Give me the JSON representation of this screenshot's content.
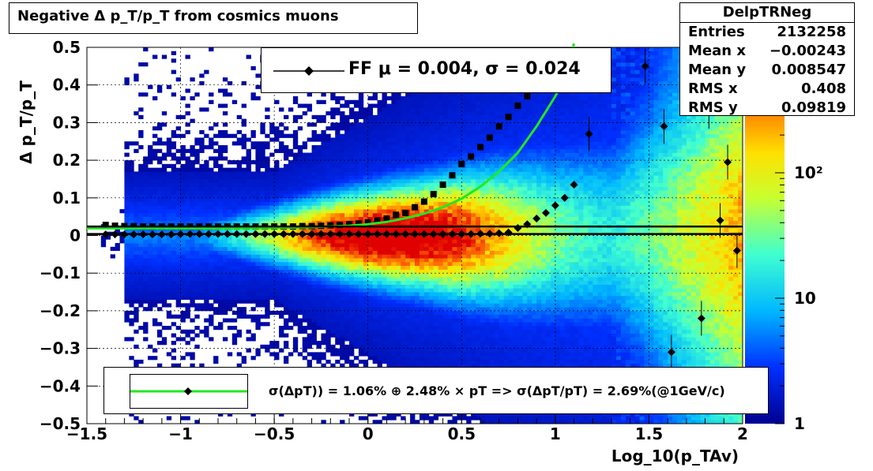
{
  "title": "Negative Δ p_T/p_T from cosmics muons",
  "stats": {
    "name": "DelpTRNeg",
    "rows": [
      {
        "label": "Entries",
        "value": "2132258"
      },
      {
        "label": "Mean x",
        "value": "−0.00243"
      },
      {
        "label": "Mean y",
        "value": "0.008547"
      },
      {
        "label": "RMS x",
        "value": "0.408"
      },
      {
        "label": "RMS y",
        "value": "0.09819"
      }
    ]
  },
  "legend1": {
    "text": "FF μ =  0.004, σ =   0.024"
  },
  "legend2": {
    "text": "σ(ΔpT)) =  1.06% ⊕  2.48% × pT => σ(ΔpT/pT) =  2.69%(@1GeV/c)"
  },
  "colors": {
    "fit_line": "#22e822",
    "markers": "#000000"
  },
  "chart_data": {
    "type": "heatmap",
    "title": "Negative Δ p_T/p_T from cosmics muons",
    "xlabel": "Log_10(p_TAv)",
    "ylabel": "Δ p_T/p_T",
    "xlim": [
      -1.5,
      2
    ],
    "ylim": [
      -0.5,
      0.5
    ],
    "z_scale": "log",
    "z_range": [
      1,
      1000
    ],
    "x_ticks": [
      -1.5,
      -1,
      -0.5,
      0,
      0.5,
      1,
      1.5,
      2
    ],
    "x_tick_labels": [
      "−1.5",
      "−1",
      "−0.5",
      "0",
      "0.5",
      "1",
      "1.5",
      "2"
    ],
    "y_ticks": [
      -0.5,
      -0.4,
      -0.3,
      -0.2,
      -0.1,
      0,
      0.1,
      0.2,
      0.3,
      0.4,
      0.5
    ],
    "y_tick_labels": [
      "−0.5",
      "−0.4",
      "−0.3",
      "−0.2",
      "−0.1",
      "0",
      "0.1",
      "0.2",
      "0.3",
      "0.4",
      "0.5"
    ],
    "colorbar_labels": [
      {
        "value": 1,
        "label": "1"
      },
      {
        "value": 10,
        "label": "10"
      },
      {
        "value": 100,
        "label": "10²"
      }
    ],
    "grid": true,
    "legend_placement": "top-center",
    "series": [
      {
        "name": "mean",
        "marker": "diamond",
        "x": [
          -1.4,
          -1.35,
          -1.3,
          -1.25,
          -1.2,
          -1.15,
          -1.1,
          -1.05,
          -1.0,
          -0.95,
          -0.9,
          -0.85,
          -0.8,
          -0.75,
          -0.7,
          -0.65,
          -0.6,
          -0.55,
          -0.5,
          -0.45,
          -0.4,
          -0.35,
          -0.3,
          -0.25,
          -0.2,
          -0.15,
          -0.1,
          -0.05,
          0.0,
          0.05,
          0.1,
          0.15,
          0.2,
          0.25,
          0.3,
          0.35,
          0.4,
          0.45,
          0.5,
          0.55,
          0.6,
          0.65,
          0.7,
          0.75,
          0.8,
          0.85,
          0.9,
          0.95,
          1.0,
          1.05,
          1.1,
          1.18,
          1.48,
          1.58,
          1.62,
          1.78,
          1.82,
          1.88,
          1.92,
          1.97
        ],
        "y": [
          0.003,
          0.003,
          0.003,
          0.003,
          0.003,
          0.003,
          0.003,
          0.003,
          0.004,
          0.004,
          0.004,
          0.004,
          0.004,
          0.004,
          0.004,
          0.004,
          0.004,
          0.004,
          0.004,
          0.004,
          0.004,
          0.004,
          0.004,
          0.004,
          0.004,
          0.004,
          0.004,
          0.004,
          0.004,
          0.004,
          0.004,
          0.004,
          0.004,
          0.004,
          0.004,
          0.004,
          0.004,
          0.004,
          0.004,
          0.004,
          0.005,
          0.005,
          0.006,
          0.008,
          0.02,
          0.03,
          0.045,
          0.06,
          0.08,
          0.1,
          0.135,
          0.27,
          0.45,
          0.29,
          -0.31,
          -0.22,
          0.33,
          0.04,
          0.195,
          -0.04
        ]
      },
      {
        "name": "sigma",
        "marker": "square",
        "x": [
          -1.4,
          -1.35,
          -1.3,
          -1.25,
          -1.2,
          -1.15,
          -1.1,
          -1.05,
          -1.0,
          -0.95,
          -0.9,
          -0.85,
          -0.8,
          -0.75,
          -0.7,
          -0.65,
          -0.6,
          -0.55,
          -0.5,
          -0.45,
          -0.4,
          -0.35,
          -0.3,
          -0.25,
          -0.2,
          -0.15,
          -0.1,
          -0.05,
          0.0,
          0.05,
          0.1,
          0.15,
          0.2,
          0.25,
          0.3,
          0.35,
          0.4,
          0.45,
          0.5,
          0.55,
          0.6,
          0.65,
          0.7,
          0.75,
          0.8,
          0.85
        ],
        "y": [
          0.028,
          0.026,
          0.025,
          0.025,
          0.024,
          0.024,
          0.024,
          0.024,
          0.024,
          0.024,
          0.024,
          0.024,
          0.024,
          0.024,
          0.024,
          0.024,
          0.024,
          0.024,
          0.024,
          0.024,
          0.024,
          0.025,
          0.025,
          0.026,
          0.027,
          0.028,
          0.03,
          0.032,
          0.035,
          0.04,
          0.045,
          0.055,
          0.06,
          0.075,
          0.09,
          0.11,
          0.135,
          0.16,
          0.19,
          0.21,
          0.235,
          0.26,
          0.29,
          0.315,
          0.345,
          0.37
        ]
      },
      {
        "name": "fit",
        "type": "line",
        "x": [
          -1.5,
          -1.3,
          -1.1,
          -0.9,
          -0.7,
          -0.5,
          -0.3,
          -0.1,
          0.0,
          0.1,
          0.2,
          0.3,
          0.4,
          0.5,
          0.6,
          0.7,
          0.8,
          0.9,
          1.0,
          1.05,
          1.1
        ],
        "y": [
          0.019,
          0.019,
          0.019,
          0.019,
          0.019,
          0.02,
          0.022,
          0.026,
          0.03,
          0.036,
          0.046,
          0.058,
          0.075,
          0.098,
          0.13,
          0.17,
          0.22,
          0.29,
          0.37,
          0.42,
          0.51
        ]
      },
      {
        "name": "mu-line",
        "type": "line",
        "x": [
          -1.5,
          2
        ],
        "y": [
          0.004,
          0.004
        ]
      },
      {
        "name": "sigma-line",
        "type": "line",
        "x": [
          -1.5,
          2
        ],
        "y": [
          0.024,
          0.024
        ]
      }
    ]
  }
}
